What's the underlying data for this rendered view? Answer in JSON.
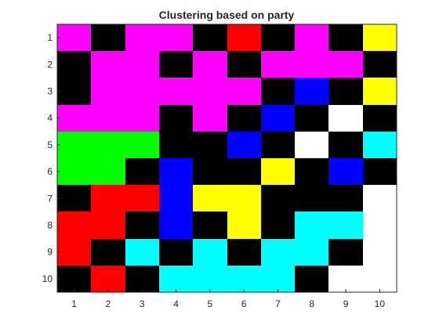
{
  "chart_data": {
    "type": "heatmap",
    "title": "Clustering based on party",
    "xlabel": "",
    "ylabel": "",
    "x_ticks": [
      "1",
      "2",
      "3",
      "4",
      "5",
      "6",
      "7",
      "8",
      "9",
      "10"
    ],
    "y_ticks": [
      "1",
      "2",
      "3",
      "4",
      "5",
      "6",
      "7",
      "8",
      "9",
      "10"
    ],
    "xlim": [
      0.5,
      10.5
    ],
    "ylim": [
      0.5,
      10.5
    ],
    "y_direction": "reverse",
    "grid": false,
    "colors": {
      "K": "#000000",
      "M": "#ff00ff",
      "R": "#ff0000",
      "Y": "#ffff00",
      "B": "#0000ff",
      "W": "#ffffff",
      "G": "#00ff00",
      "C": "#00ffff"
    },
    "cells": [
      [
        "M",
        "K",
        "M",
        "M",
        "K",
        "R",
        "K",
        "M",
        "K",
        "Y"
      ],
      [
        "K",
        "M",
        "M",
        "K",
        "M",
        "K",
        "M",
        "M",
        "M",
        "K"
      ],
      [
        "K",
        "M",
        "M",
        "M",
        "M",
        "M",
        "K",
        "B",
        "K",
        "Y"
      ],
      [
        "M",
        "M",
        "M",
        "K",
        "M",
        "K",
        "B",
        "K",
        "W",
        "K"
      ],
      [
        "G",
        "G",
        "G",
        "K",
        "K",
        "B",
        "K",
        "W",
        "K",
        "C"
      ],
      [
        "G",
        "G",
        "K",
        "B",
        "K",
        "K",
        "Y",
        "K",
        "B",
        "K"
      ],
      [
        "K",
        "R",
        "R",
        "B",
        "Y",
        "Y",
        "K",
        "K",
        "K",
        "W"
      ],
      [
        "R",
        "R",
        "K",
        "B",
        "K",
        "Y",
        "K",
        "C",
        "C",
        "W"
      ],
      [
        "R",
        "K",
        "C",
        "K",
        "C",
        "K",
        "C",
        "C",
        "K",
        "W"
      ],
      [
        "K",
        "R",
        "K",
        "C",
        "C",
        "C",
        "C",
        "K",
        "W",
        "W"
      ]
    ]
  }
}
